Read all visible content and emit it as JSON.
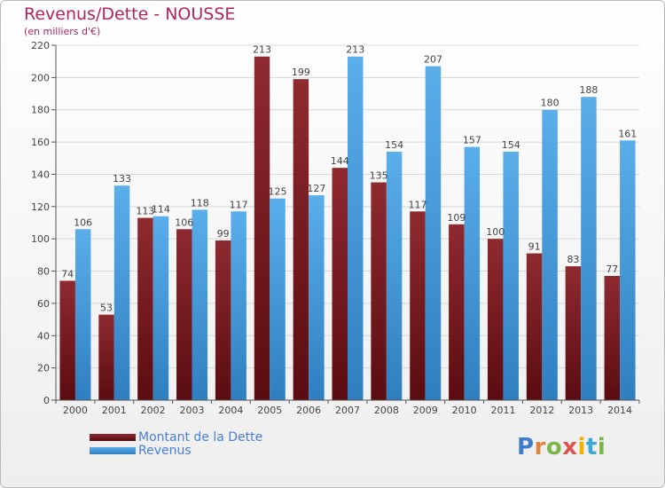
{
  "header": {
    "title": "Revenus/Dette - NOUSSE",
    "subtitle": "(en milliers d'€)"
  },
  "legend": {
    "debt": "Montant de la Dette",
    "revenue": "Revenus"
  },
  "logo": {
    "text": "Proxiti",
    "colors": [
      "#3f7fc9",
      "#e0833d",
      "#7ab648",
      "#d9534f",
      "#f0b400",
      "#3fa7d6",
      "#7ab648"
    ]
  },
  "colors": {
    "debt": "#7f1f23",
    "revenue": "#4fa3e3",
    "title": "#b0245f"
  },
  "chart_data": {
    "type": "bar",
    "categories": [
      "2000",
      "2001",
      "2002",
      "2003",
      "2004",
      "2005",
      "2006",
      "2007",
      "2008",
      "2009",
      "2010",
      "2011",
      "2012",
      "2013",
      "2014"
    ],
    "series": [
      {
        "name": "Montant de la Dette",
        "values": [
          74,
          53,
          113,
          106,
          99,
          213,
          199,
          144,
          135,
          117,
          109,
          100,
          91,
          83,
          77
        ]
      },
      {
        "name": "Revenus",
        "values": [
          106,
          133,
          114,
          118,
          117,
          125,
          127,
          213,
          154,
          207,
          157,
          154,
          180,
          188,
          161
        ]
      }
    ],
    "title": "Revenus/Dette - NOUSSE",
    "ylabel": "(en milliers d'€)",
    "ylim": [
      0,
      220
    ],
    "yticks": [
      0,
      20,
      40,
      60,
      80,
      100,
      120,
      140,
      160,
      180,
      200,
      220
    ],
    "grid": true,
    "legend": "bottom-left"
  }
}
